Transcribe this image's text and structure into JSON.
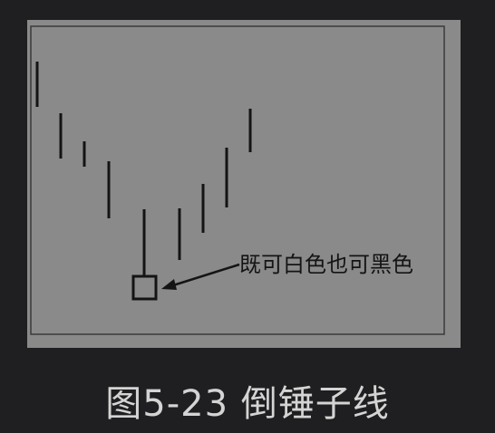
{
  "figure": {
    "annotation_label": "既可白色也可黑色",
    "caption": "图5-23 倒锤子线",
    "colors": {
      "page_background": "#1f1f21",
      "panel_background": "#8a8a8a",
      "ink": "#141414",
      "caption_text": "#d4d4d4"
    }
  }
}
